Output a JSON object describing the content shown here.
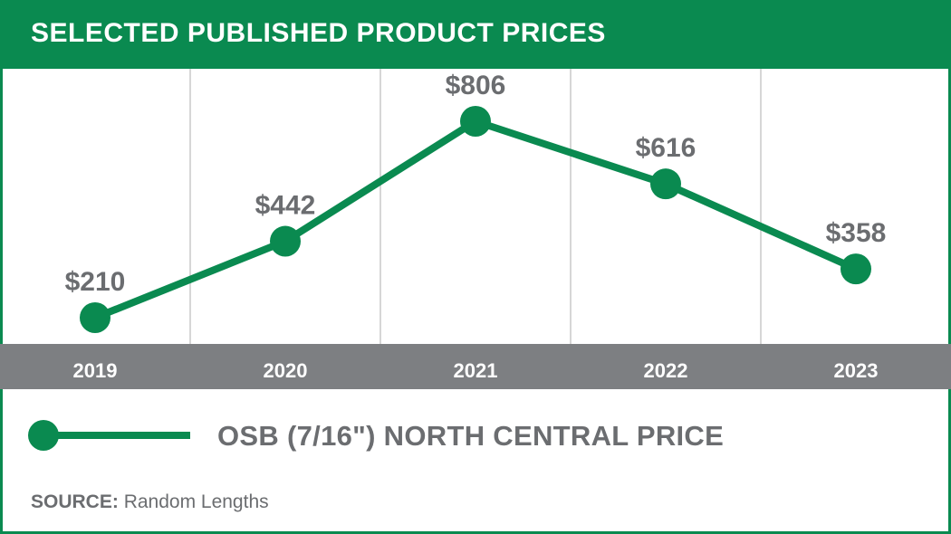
{
  "title": "SELECTED PUBLISHED PRODUCT PRICES",
  "colors": {
    "brand_green": "#0a8a50",
    "axis_band": "#7d7f82",
    "label_gray": "#6b6d70",
    "gridline": "#d6d6d6"
  },
  "chart_data": {
    "type": "line",
    "title": "SELECTED PUBLISHED PRODUCT PRICES",
    "categories": [
      "2019",
      "2020",
      "2021",
      "2022",
      "2023"
    ],
    "series": [
      {
        "name": "OSB (7/16\") NORTH CENTRAL PRICE",
        "values": [
          210,
          442,
          806,
          616,
          358
        ],
        "labels": [
          "$210",
          "$442",
          "$806",
          "$616",
          "$358"
        ]
      }
    ],
    "ylim": [
      0,
      900
    ],
    "grid": "vertical",
    "legend_position": "bottom",
    "xlabel": "",
    "ylabel": ""
  },
  "legend": {
    "label": "OSB (7/16\") NORTH CENTRAL PRICE"
  },
  "source": {
    "prefix": "SOURCE:",
    "text": "Random Lengths"
  }
}
